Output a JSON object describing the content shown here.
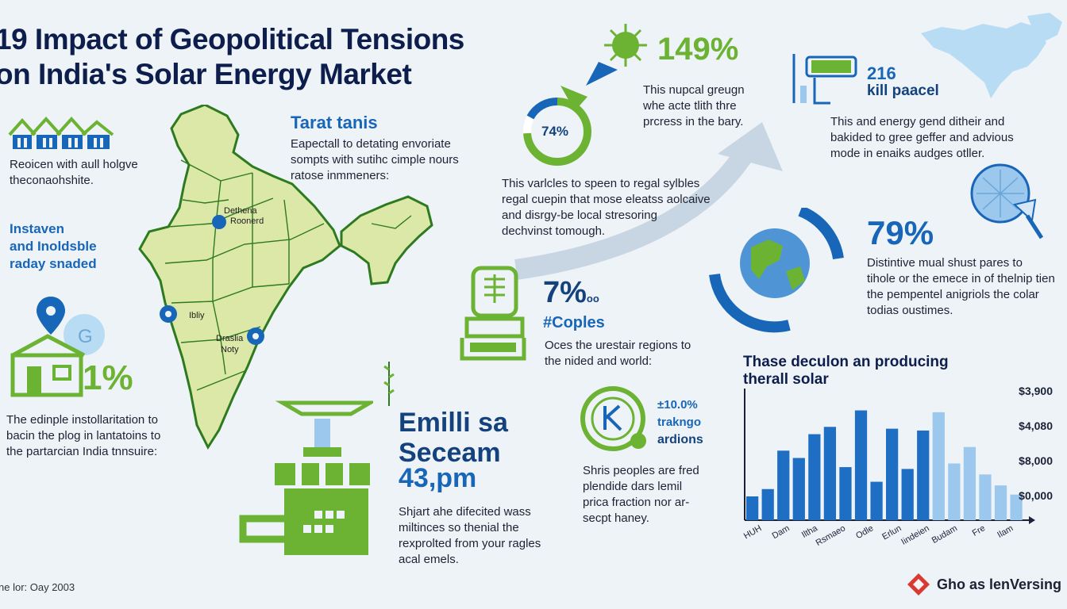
{
  "title": {
    "line1": "19 Impact of Geopolitical Tensions",
    "line2": "on India's Solar Energy Market"
  },
  "left": {
    "houses_text_1": "Reoicen with aull holgve",
    "houses_text_2": "theconaohshite.",
    "invest_1": "Instaven",
    "invest_2": "and Inoldsble",
    "invest_3": "raday snaded",
    "home_stat": "1%",
    "install_1": "The edinple instollaritation to",
    "install_2": "bacin the plog in lantatoins to",
    "install_3": "the partarcian India tnnsuire:"
  },
  "map": {
    "city_1a": "Dethena",
    "city_1b": "Roonerd",
    "city_2": "Ibliy",
    "city_3a": "Draslia",
    "city_3b": "Noty"
  },
  "target": {
    "heading": "Tarat tanis",
    "line1": "Eapectall to detating envoriate",
    "line2": "sompts with sutihc cimple nours",
    "line3": "ratose inmmeners:"
  },
  "emission": {
    "line1": "Emilli sa",
    "line2": "Seceam",
    "value": "43,pm",
    "desc1": "Shjart ahe difecited wass",
    "desc2": "miltinces so thenial the",
    "desc3": "rexprolted from your ragles",
    "desc4": "acal emels."
  },
  "center": {
    "donut_value": "74%",
    "donut_fraction": 0.74,
    "stat_149": "149%",
    "t149_1": "This nupcal greugn",
    "t149_2": "whe acte tlith thre",
    "t149_3": "prcress in the bary.",
    "var_1": "This varlcles to speen to regal sylbles",
    "var_2": "regal cuepin that mose eleatss aolcaive",
    "var_3": "and disrgy-be local stresoring",
    "var_4": "dechvinst tomough.",
    "stat_7": "7%",
    "stat_7_suffix": "oo",
    "couples": "#Coples",
    "oces_1": "Oces the urestair regions to",
    "oces_2": "the nided and world:",
    "k_pct": "±10.0%",
    "k_1": "trakngo",
    "k_2": "ardions",
    "shris_1": "Shris peoples are fred",
    "shris_2": "plendide dars lemil",
    "shris_3": "prica fraction nor ar-",
    "shris_4": "secpt haney."
  },
  "right": {
    "panel_value": "216",
    "panel_label": "kill paacel",
    "energy_1": "This and energy gend ditheir and",
    "energy_2": "bakided to gree geffer and advious",
    "energy_3": "mode in enaiks audges otller.",
    "stat_79": "79%",
    "dist_1": "Distintive mual shust pares to",
    "dist_2": "tihole or the emece in of thelnip tien",
    "dist_3": "the pempentel anigriols the colar",
    "dist_4": "todias oustimes."
  },
  "chart_data": {
    "type": "bar",
    "title": "Thase deculon an producing therall solar",
    "y_tick_labels": [
      "$3,900",
      "$4,080",
      "$8,000",
      "$0,000"
    ],
    "x_tick_labels": [
      "HUH",
      "Dam",
      "Iltha",
      "Rsmaeo",
      "Odle",
      "Erlun",
      "Iindeien",
      "Budam",
      "Fre",
      "Ilam"
    ],
    "values": [
      13,
      17,
      38,
      34,
      47,
      51,
      29,
      60,
      21,
      50,
      28,
      49,
      59,
      31,
      40,
      25,
      19,
      14
    ],
    "highlight": [
      false,
      false,
      false,
      false,
      false,
      false,
      false,
      false,
      false,
      false,
      false,
      false,
      true,
      true,
      true,
      true,
      true,
      true
    ],
    "ylim": [
      0,
      65
    ]
  },
  "footer": {
    "date": "ne lor: Oay 2003",
    "brand": "Gho as lenVersing"
  },
  "colors": {
    "navy": "#0e1e4c",
    "blue": "#1866b8",
    "light_blue": "#9cc8ee",
    "green": "#6cb233"
  }
}
